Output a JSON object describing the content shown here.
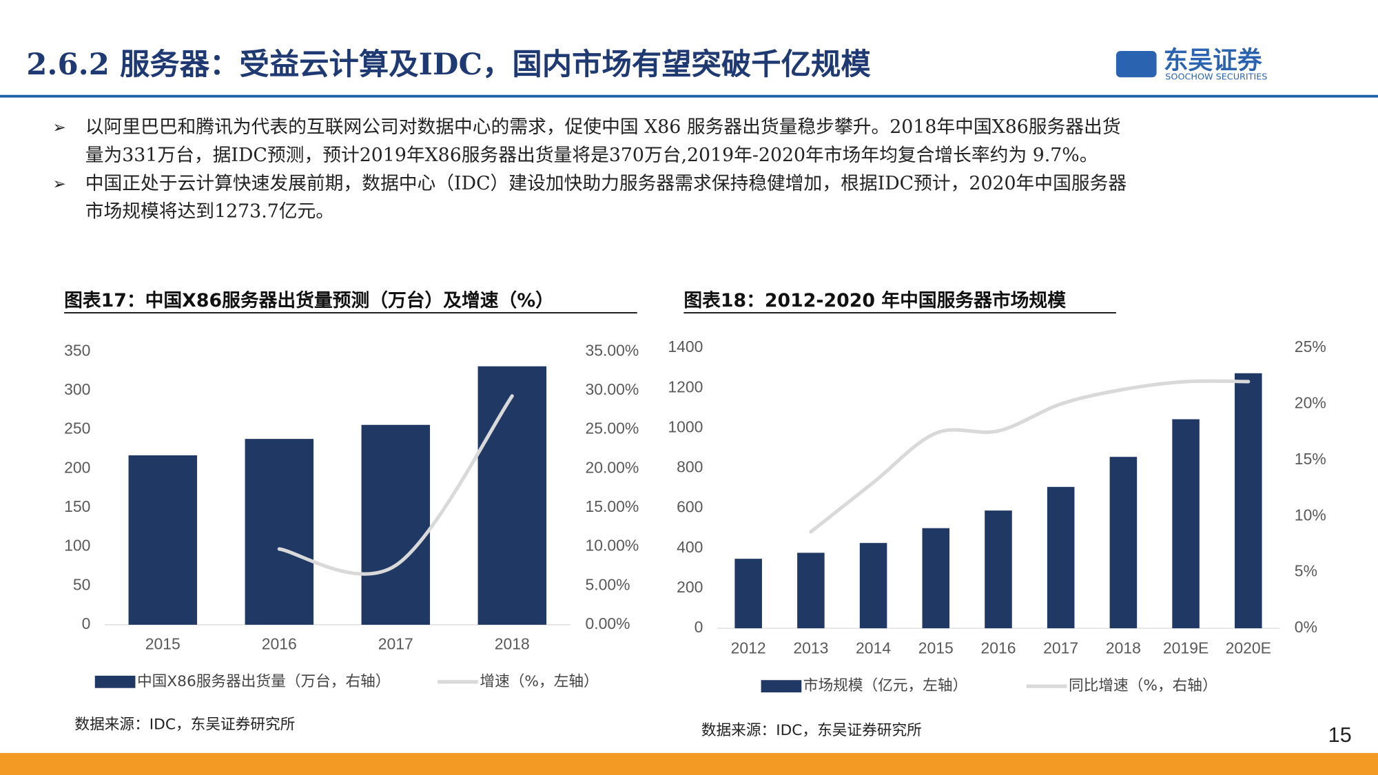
{
  "header": {
    "title": "2.6.2 服务器：受益云计算及IDC，国内市场有望突破千亿规模",
    "logo": "东吴证券",
    "logo_sub": "SOOCHOW SECURITIES"
  },
  "bullets": [
    [
      "以阿里巴巴和腾讯为代表的互联网公司对数据中心的需求，促使中国 X86 服务器出货量稳步攀升。2018年中国X86服务器出货",
      "量为331万台，据IDC预测，预计2019年X86服务器出货量将是370万台,2019年-2020年市场年均复合增长率约为 9.7%。"
    ],
    [
      "中国正处于云计算快速发展前期，数据中心（IDC）建设加快助力服务器需求保持稳健增加，根据IDC预计，2020年中国服务器",
      "市场规模将达到1273.7亿元。"
    ]
  ],
  "page_number": "15",
  "chart_data": [
    {
      "type": "bar",
      "title": "图表17：中国X86服务器出货量预测（万台）及增速（%）",
      "source": "数据来源：IDC，东吴证券研究所",
      "categories": [
        "2015",
        "2016",
        "2017",
        "2018"
      ],
      "series": [
        {
          "name": "中国X86服务器出货量（万台，右轴）",
          "type": "bar",
          "color": "#203864",
          "values": [
            217,
            238,
            256,
            331
          ]
        },
        {
          "name": "增速（%，左轴）",
          "type": "line",
          "axis": "y2",
          "color": "#d9d9d9",
          "values": [
            null,
            9.7,
            7.6,
            29.3
          ]
        }
      ],
      "ylim": [
        0,
        350
      ],
      "yticks": [
        0,
        50,
        100,
        150,
        200,
        250,
        300,
        350
      ],
      "y2lim": [
        0,
        35
      ],
      "y2ticks": [
        {
          "value": 0,
          "label": "0.00%"
        },
        {
          "value": 5,
          "label": "5.00%"
        },
        {
          "value": 10,
          "label": "10.00%"
        },
        {
          "value": 15,
          "label": "15.00%"
        },
        {
          "value": 20,
          "label": "20.00%"
        },
        {
          "value": 25,
          "label": "25.00%"
        },
        {
          "value": 30,
          "label": "30.00%"
        },
        {
          "value": 35,
          "label": "35.00%"
        }
      ]
    },
    {
      "type": "bar",
      "title": "图表18：2012-2020 年中国服务器市场规模",
      "source": "数据来源：IDC，东吴证券研究所",
      "categories": [
        "2012",
        "2013",
        "2014",
        "2015",
        "2016",
        "2017",
        "2018",
        "2019E",
        "2020E"
      ],
      "series": [
        {
          "name": "市场规模（亿元，左轴）",
          "type": "bar",
          "color": "#203864",
          "values": [
            347,
            377,
            426,
            500,
            588,
            706,
            856,
            1044,
            1273.7
          ]
        },
        {
          "name": "同比增速（%，右轴）",
          "type": "line",
          "axis": "y2",
          "color": "#d9d9d9",
          "values": [
            null,
            8.6,
            13,
            17.4,
            17.6,
            20,
            21.3,
            22,
            22
          ]
        }
      ],
      "ylim": [
        0,
        1400
      ],
      "yticks": [
        0,
        200,
        400,
        600,
        800,
        1000,
        1200,
        1400
      ],
      "y2lim": [
        0,
        25
      ],
      "y2ticks": [
        {
          "value": 0,
          "label": "0%"
        },
        {
          "value": 5,
          "label": "5%"
        },
        {
          "value": 10,
          "label": "10%"
        },
        {
          "value": 15,
          "label": "15%"
        },
        {
          "value": 20,
          "label": "20%"
        },
        {
          "value": 25,
          "label": "25%"
        }
      ]
    }
  ]
}
